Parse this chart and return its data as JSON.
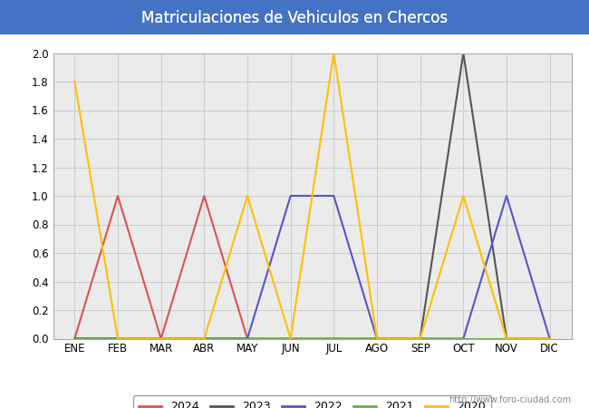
{
  "title": "Matriculaciones de Vehiculos en Chercos",
  "title_color": "#ffffff",
  "title_bg_color": "#4472c4",
  "months": [
    "ENE",
    "FEB",
    "MAR",
    "ABR",
    "MAY",
    "JUN",
    "JUL",
    "AGO",
    "SEP",
    "OCT",
    "NOV",
    "DIC"
  ],
  "series": {
    "2024": {
      "values": [
        0,
        1,
        0,
        1,
        0,
        null,
        null,
        null,
        null,
        null,
        null,
        null
      ],
      "color": "#e05050",
      "linewidth": 1.5
    },
    "2023": {
      "values": [
        0,
        0,
        0,
        0,
        0,
        0,
        0,
        0,
        0,
        2,
        0,
        0
      ],
      "color": "#555555",
      "linewidth": 1.5
    },
    "2022": {
      "values": [
        0,
        0,
        0,
        0,
        0,
        1,
        1,
        0,
        0,
        0,
        1,
        0
      ],
      "color": "#5555cc",
      "linewidth": 1.5
    },
    "2021": {
      "values": [
        0,
        0,
        0,
        0,
        0,
        0,
        0,
        0,
        0,
        0,
        0,
        0
      ],
      "color": "#70ad47",
      "linewidth": 1.5
    },
    "2020": {
      "values": [
        1.8,
        0,
        0,
        0,
        1,
        0,
        2,
        0,
        0,
        1,
        0,
        0
      ],
      "color": "#ffc000",
      "linewidth": 1.5
    }
  },
  "ylim": [
    0,
    2.0
  ],
  "yticks": [
    0.0,
    0.2,
    0.4,
    0.6,
    0.8,
    1.0,
    1.2,
    1.4,
    1.6,
    1.8,
    2.0
  ],
  "grid_color": "#cccccc",
  "bg_color": "#ffffff",
  "plot_bg_color": "#ebebeb",
  "watermark": "http://www.foro-ciudad.com",
  "legend_order": [
    "2024",
    "2023",
    "2022",
    "2021",
    "2020"
  ]
}
